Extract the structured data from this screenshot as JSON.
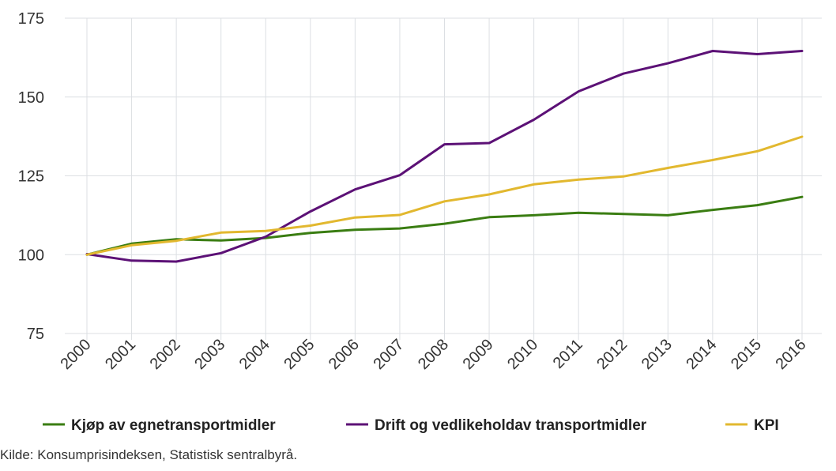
{
  "chart_data": {
    "type": "line",
    "x": [
      "2000",
      "2001",
      "2002",
      "2003",
      "2004",
      "2005",
      "2006",
      "2007",
      "2008",
      "2009",
      "2010",
      "2011",
      "2012",
      "2013",
      "2014",
      "2015",
      "2016"
    ],
    "ylim": [
      75,
      175
    ],
    "yticks": [
      75,
      100,
      125,
      150,
      175
    ],
    "grid": true,
    "legend_position": "bottom",
    "series": [
      {
        "name": "Kjøp av egnetransportmidler",
        "color": "#3a7d12",
        "values": [
          100.0,
          103.5,
          104.9,
          104.5,
          105.3,
          106.9,
          107.9,
          108.3,
          109.8,
          111.9,
          112.5,
          113.3,
          112.9,
          112.5,
          114.2,
          115.7,
          118.3
        ]
      },
      {
        "name": "Drift og vedlikeholdav transportmidler",
        "color": "#5c1176",
        "values": [
          100.2,
          98.1,
          97.8,
          100.5,
          105.7,
          113.7,
          120.7,
          125.2,
          135.0,
          135.4,
          142.8,
          151.8,
          157.4,
          160.7,
          164.6,
          163.6,
          164.6
        ]
      },
      {
        "name": "KPI",
        "color": "#e2b82f",
        "values": [
          100.0,
          103.0,
          104.4,
          107.0,
          107.5,
          109.2,
          111.8,
          112.6,
          116.9,
          119.1,
          122.3,
          123.8,
          124.8,
          127.5,
          130.0,
          132.8,
          137.4
        ]
      }
    ]
  },
  "footer": {
    "source": "Kilde: Konsumprisindeksen, Statistisk sentralbyrå."
  }
}
